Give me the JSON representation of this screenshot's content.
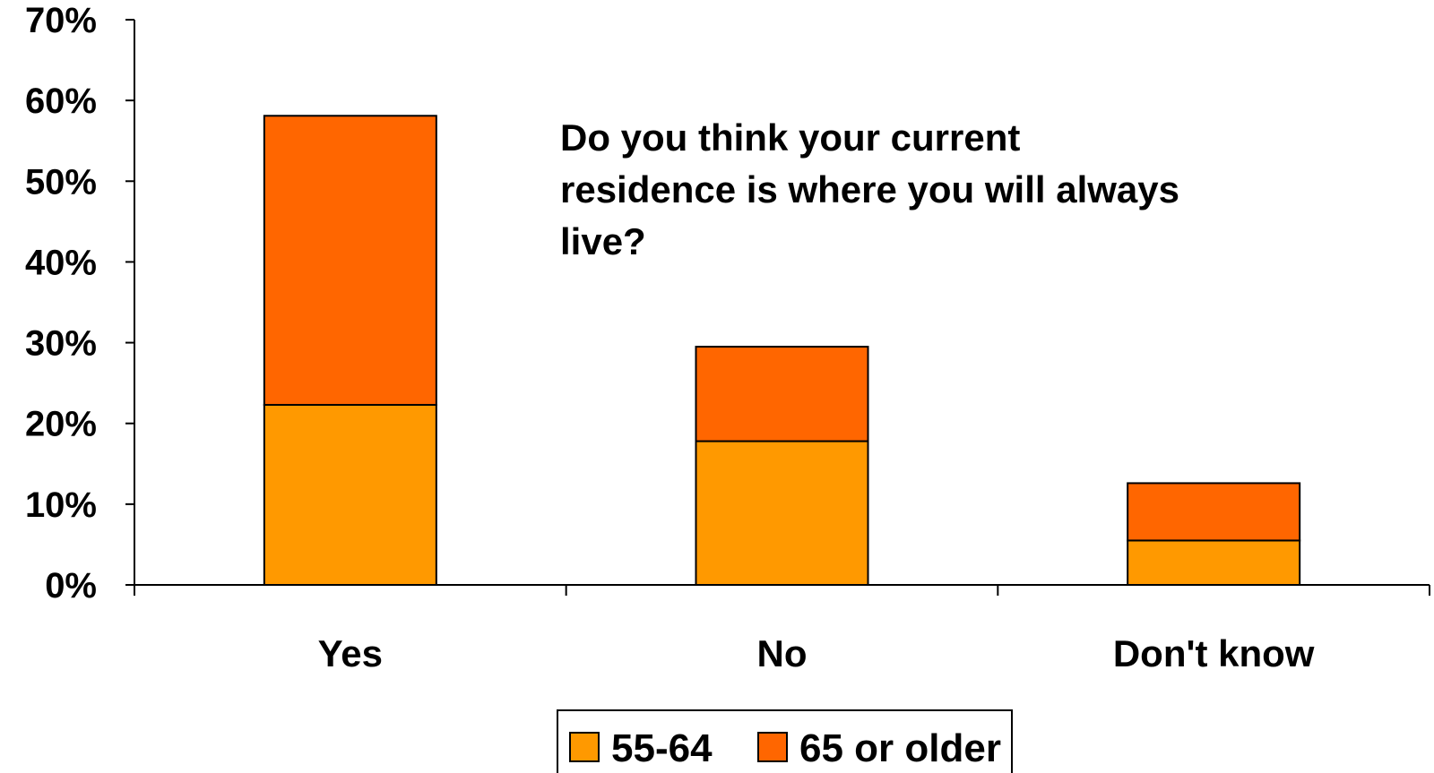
{
  "chart_data": {
    "type": "bar",
    "stacked": true,
    "title": "Do you think your current residence is where you will always live?",
    "title_lines": [
      "Do you think your current",
      "residence is where you will always",
      "live?"
    ],
    "categories": [
      "Yes",
      "No",
      "Don't know"
    ],
    "series": [
      {
        "name": "55-64",
        "values": [
          22.3,
          17.8,
          5.5
        ],
        "color": "#FF9900"
      },
      {
        "name": "65 or older",
        "values": [
          35.8,
          11.7,
          7.1
        ],
        "color": "#FF6600"
      }
    ],
    "y_ticks": [
      "0%",
      "10%",
      "20%",
      "30%",
      "40%",
      "50%",
      "60%",
      "70%"
    ],
    "ylim": [
      0,
      70
    ],
    "grid": false,
    "legend_position": "bottom"
  }
}
